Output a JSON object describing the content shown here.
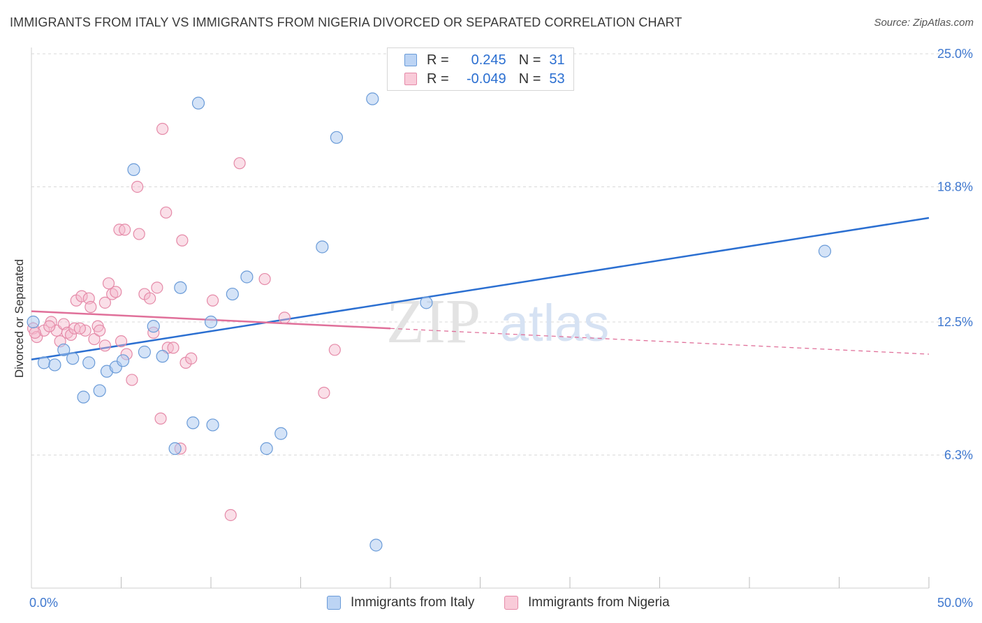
{
  "header": {
    "title": "IMMIGRANTS FROM ITALY VS IMMIGRANTS FROM NIGERIA DIVORCED OR SEPARATED CORRELATION CHART",
    "source": "Source: ZipAtlas.com"
  },
  "legend": {
    "italy": {
      "r_label": "R =",
      "r_value": "0.245",
      "n_label": "N =",
      "n_value": "31"
    },
    "nigeria": {
      "r_label": "R =",
      "r_value": "-0.049",
      "n_label": "N =",
      "n_value": "53"
    }
  },
  "watermark": {
    "zip": "ZIP",
    "atlas": "atlas"
  },
  "colors": {
    "italy_fill": "#a9c8f0",
    "italy_stroke": "#6a9bd8",
    "italy_line": "#2b6fd1",
    "nigeria_fill": "#f5b8cb",
    "nigeria_stroke": "#e58aa8",
    "nigeria_line": "#e0709a",
    "axis_text": "#3f78cf",
    "grid": "#d9d9d9"
  },
  "chart_data": {
    "type": "scatter",
    "title": "IMMIGRANTS FROM ITALY VS IMMIGRANTS FROM NIGERIA DIVORCED OR SEPARATED CORRELATION CHART",
    "xlabel": "",
    "ylabel": "Divorced or Separated",
    "xlim": [
      0,
      50
    ],
    "ylim": [
      0,
      25
    ],
    "x_tick_labels": [
      "0.0%",
      "50.0%"
    ],
    "y_ticks": [
      {
        "value": 25.0,
        "label": "25.0%"
      },
      {
        "value": 18.8,
        "label": "18.8%"
      },
      {
        "value": 12.5,
        "label": "12.5%"
      },
      {
        "value": 6.3,
        "label": "6.3%"
      }
    ],
    "x_minor_ticks": [
      5,
      10,
      15,
      20,
      25,
      30,
      35,
      40,
      45,
      50
    ],
    "series": [
      {
        "name": "Immigrants from Italy",
        "points": [
          [
            0.1,
            12.5
          ],
          [
            0.7,
            10.6
          ],
          [
            1.3,
            10.5
          ],
          [
            1.8,
            11.2
          ],
          [
            2.3,
            10.8
          ],
          [
            2.9,
            9.0
          ],
          [
            3.2,
            10.6
          ],
          [
            3.8,
            9.3
          ],
          [
            4.2,
            10.2
          ],
          [
            4.7,
            10.4
          ],
          [
            5.1,
            10.7
          ],
          [
            5.7,
            19.6
          ],
          [
            6.3,
            11.1
          ],
          [
            6.8,
            12.3
          ],
          [
            7.3,
            10.9
          ],
          [
            8.0,
            6.6
          ],
          [
            8.3,
            14.1
          ],
          [
            9.0,
            7.8
          ],
          [
            9.3,
            22.7
          ],
          [
            10.0,
            12.5
          ],
          [
            10.1,
            7.7
          ],
          [
            11.2,
            13.8
          ],
          [
            12.0,
            14.6
          ],
          [
            13.1,
            6.6
          ],
          [
            13.9,
            7.3
          ],
          [
            16.2,
            16.0
          ],
          [
            17.0,
            21.1
          ],
          [
            19.0,
            22.9
          ],
          [
            19.2,
            2.1
          ],
          [
            22.0,
            13.4
          ],
          [
            44.2,
            15.8
          ]
        ],
        "trend": {
          "x": [
            0,
            50
          ],
          "y": [
            10.75,
            17.35
          ]
        }
      },
      {
        "name": "Immigrants from Nigeria",
        "points": [
          [
            0.1,
            12.2
          ],
          [
            0.3,
            11.8
          ],
          [
            0.7,
            12.1
          ],
          [
            1.1,
            12.5
          ],
          [
            1.4,
            12.1
          ],
          [
            1.6,
            11.6
          ],
          [
            1.8,
            12.4
          ],
          [
            2.0,
            12.0
          ],
          [
            2.2,
            11.9
          ],
          [
            2.4,
            12.2
          ],
          [
            2.5,
            13.5
          ],
          [
            2.8,
            13.7
          ],
          [
            3.0,
            12.1
          ],
          [
            3.2,
            13.6
          ],
          [
            3.3,
            13.2
          ],
          [
            3.5,
            11.7
          ],
          [
            3.7,
            12.3
          ],
          [
            3.8,
            12.1
          ],
          [
            4.1,
            11.4
          ],
          [
            4.1,
            13.4
          ],
          [
            4.3,
            14.3
          ],
          [
            4.5,
            13.8
          ],
          [
            4.7,
            13.9
          ],
          [
            4.9,
            16.8
          ],
          [
            5.0,
            11.6
          ],
          [
            5.2,
            16.8
          ],
          [
            5.3,
            11.0
          ],
          [
            5.6,
            9.8
          ],
          [
            5.9,
            18.8
          ],
          [
            6.0,
            16.6
          ],
          [
            6.3,
            13.8
          ],
          [
            6.6,
            13.6
          ],
          [
            6.8,
            12.0
          ],
          [
            7.0,
            14.1
          ],
          [
            7.2,
            8.0
          ],
          [
            7.3,
            21.5
          ],
          [
            7.5,
            17.6
          ],
          [
            7.6,
            11.3
          ],
          [
            7.9,
            11.3
          ],
          [
            8.3,
            6.6
          ],
          [
            8.4,
            16.3
          ],
          [
            8.6,
            10.6
          ],
          [
            8.9,
            10.8
          ],
          [
            10.1,
            13.5
          ],
          [
            11.1,
            3.5
          ],
          [
            11.6,
            19.9
          ],
          [
            13.0,
            14.5
          ],
          [
            14.1,
            12.7
          ],
          [
            16.3,
            9.2
          ],
          [
            16.9,
            11.2
          ],
          [
            0.2,
            12.0
          ],
          [
            1.0,
            12.3
          ],
          [
            2.7,
            12.2
          ]
        ],
        "trend": {
          "x": [
            0,
            20
          ],
          "y": [
            13.0,
            12.2
          ]
        },
        "trend_dashed": {
          "x": [
            20,
            50
          ],
          "y": [
            12.2,
            11.0
          ]
        }
      }
    ]
  }
}
